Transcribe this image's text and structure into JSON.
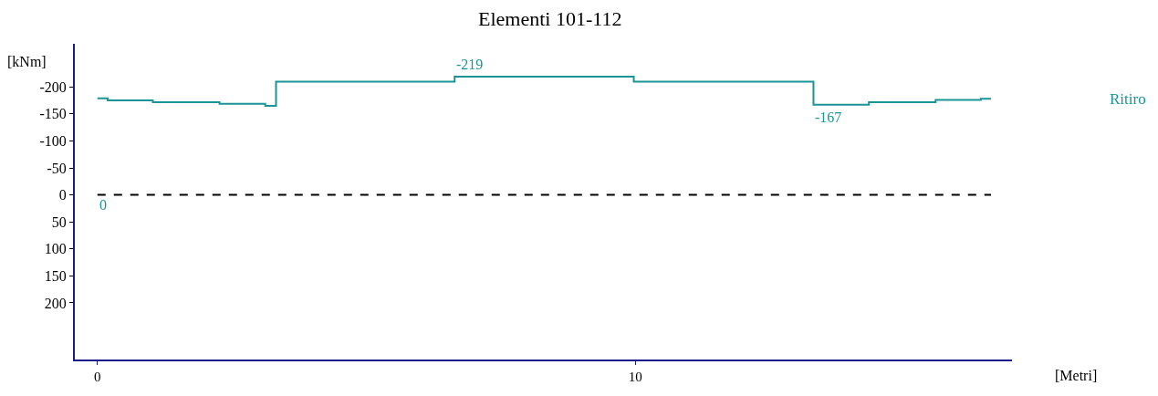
{
  "chart_data": {
    "type": "step",
    "title": "Elementi 101-112",
    "xlabel": "[Metri]",
    "ylabel": "[kNm]",
    "x": [
      0,
      0.19,
      1.03,
      2.27,
      3.12,
      3.32,
      6.64,
      9.97,
      13.31,
      14.34,
      15.58,
      16.42,
      16.61
    ],
    "series": [
      {
        "name": "Ritiro",
        "color": "#1a9494",
        "values": [
          -179,
          -175,
          -172,
          -169,
          -165,
          -210,
          -219,
          -210,
          -167,
          -172,
          -176,
          -178,
          -178
        ]
      }
    ],
    "annotations": [
      {
        "text": "-219",
        "x": 6.64,
        "y": -219
      },
      {
        "text": "-167",
        "x": 13.31,
        "y": -167
      }
    ],
    "ref_lines": [
      {
        "axis": "y",
        "value": 0,
        "label": "0",
        "color": "#000000",
        "line_style": "dashed"
      }
    ],
    "xlim": [
      -0.42,
      17.0
    ],
    "ylim": [
      305,
      -280
    ],
    "xticks": [
      0,
      10
    ],
    "yticks": [
      -200,
      -150,
      -100,
      -50,
      0,
      50,
      100,
      150,
      200
    ],
    "legend": "right",
    "line_style": "solid"
  }
}
